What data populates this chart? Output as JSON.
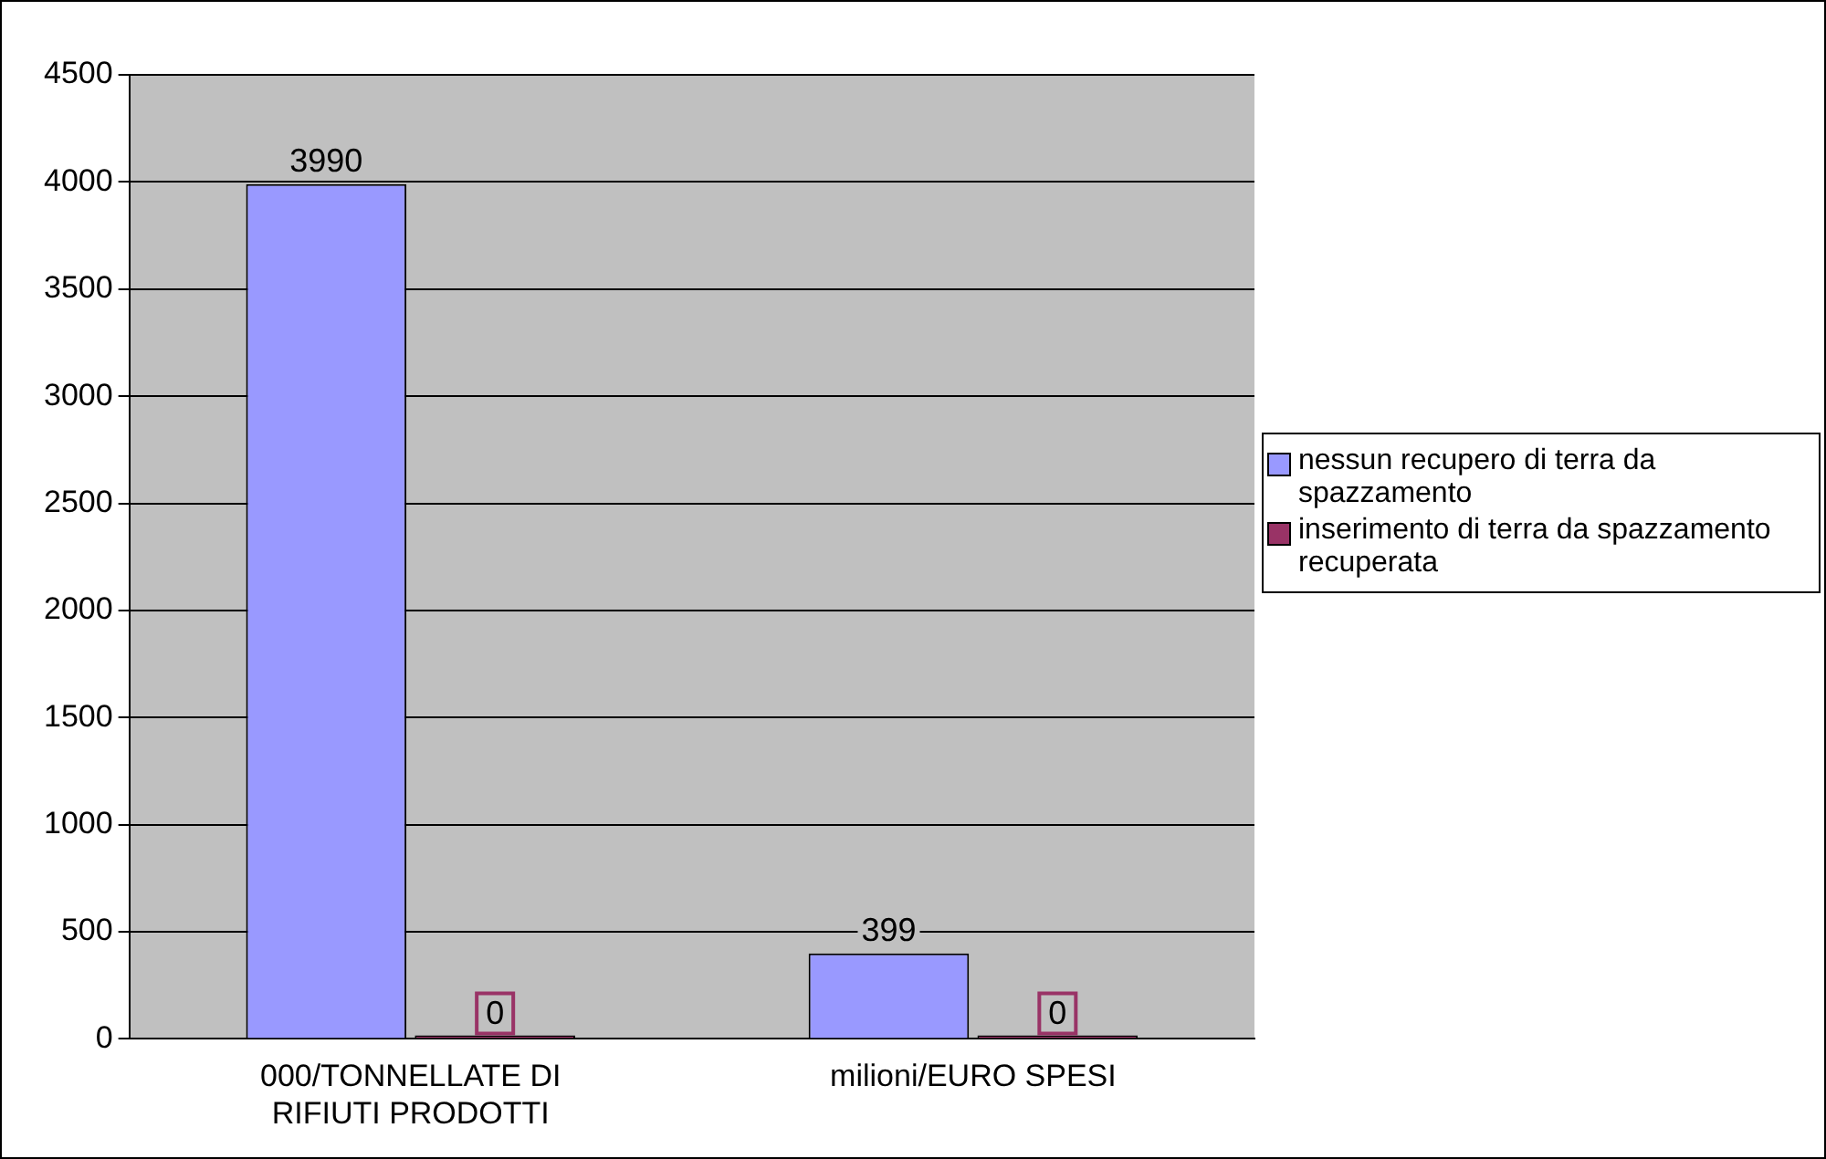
{
  "chart_data": {
    "type": "bar",
    "categories": [
      "000/TONNELLATE DI RIFIUTI PRODOTTI",
      "milioni/EURO SPESI"
    ],
    "series": [
      {
        "name": "nessun recupero di terra da spazzamento",
        "color": "#9999ff",
        "values": [
          3990,
          399
        ]
      },
      {
        "name": "inserimento di terra da spazzamento recuperata",
        "color": "#993366",
        "values": [
          0,
          0
        ]
      }
    ],
    "ylim": [
      0,
      4500
    ],
    "yticks": [
      0,
      500,
      1000,
      1500,
      2000,
      2500,
      3000,
      3500,
      4000,
      4500
    ],
    "grid": "y",
    "legend": "right",
    "data_labels": true
  }
}
